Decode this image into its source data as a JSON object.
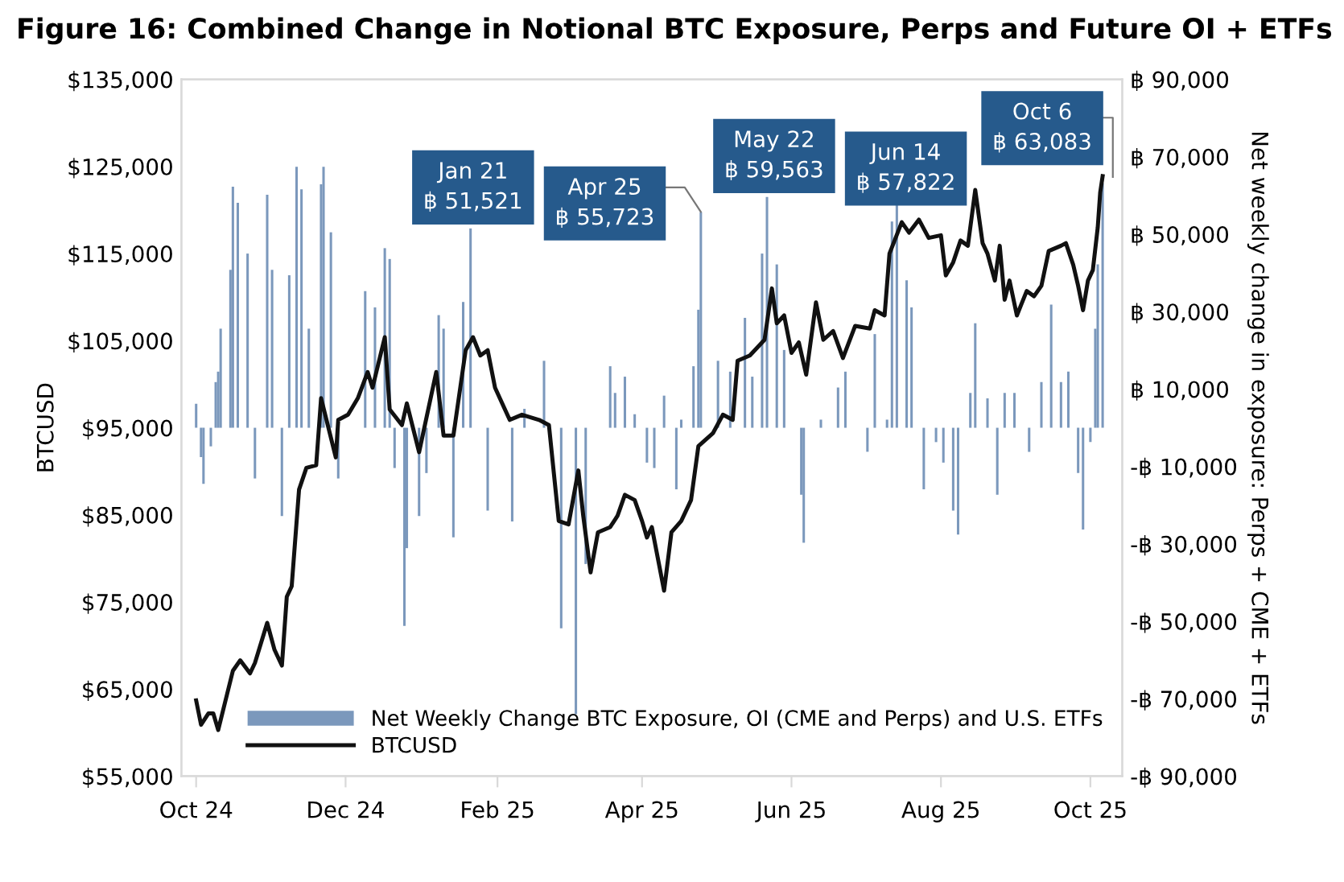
{
  "chart_data": {
    "type": "bar",
    "title": "Figure 16: Combined Change in Notional BTC Exposure, Perps and Future OI + ETFs",
    "ylabel": "BTCUSD",
    "y2label": "Net weekly change in exposure: Perps + CME + ETFs",
    "xlim": [
      "2024-09-25",
      "2025-10-14"
    ],
    "xticks": [
      {
        "value": "2024-10-01",
        "label": "Oct 24"
      },
      {
        "value": "2024-12-01",
        "label": "Dec 24"
      },
      {
        "value": "2025-02-01",
        "label": "Feb 25"
      },
      {
        "value": "2025-04-01",
        "label": "Apr 25"
      },
      {
        "value": "2025-06-01",
        "label": "Jun 25"
      },
      {
        "value": "2025-08-01",
        "label": "Aug 25"
      },
      {
        "value": "2025-10-01",
        "label": "Oct 25"
      }
    ],
    "ylim": [
      55000,
      135000
    ],
    "yticks": [
      {
        "value": 55000,
        "label": "$55,000"
      },
      {
        "value": 65000,
        "label": "$65,000"
      },
      {
        "value": 75000,
        "label": "$75,000"
      },
      {
        "value": 85000,
        "label": "$85,000"
      },
      {
        "value": 95000,
        "label": "$95,000"
      },
      {
        "value": 105000,
        "label": "$105,000"
      },
      {
        "value": 115000,
        "label": "$115,000"
      },
      {
        "value": 125000,
        "label": "$125,000"
      },
      {
        "value": 135000,
        "label": "$135,000"
      }
    ],
    "y2lim": [
      -90000,
      90000
    ],
    "y2ticks": [
      {
        "value": -90000,
        "label": "-฿ 90,000"
      },
      {
        "value": -70000,
        "label": "-฿ 70,000"
      },
      {
        "value": -50000,
        "label": "-฿ 50,000"
      },
      {
        "value": -30000,
        "label": "-฿ 30,000"
      },
      {
        "value": -10000,
        "label": "-฿ 10,000"
      },
      {
        "value": 10000,
        "label": "฿ 10,000"
      },
      {
        "value": 30000,
        "label": "฿ 30,000"
      },
      {
        "value": 50000,
        "label": "฿ 50,000"
      },
      {
        "value": 70000,
        "label": "฿ 70,000"
      },
      {
        "value": 90000,
        "label": "฿ 90,000"
      }
    ],
    "grid": false,
    "legend": "bottom left",
    "series": [
      {
        "name": "Net Weekly Change BTC Exposure, OI (CME and Perps) and U.S. ETFs",
        "axis": "y2",
        "color": "#7b98bc",
        "x": [
          "2024-10-01",
          "2024-10-03",
          "2024-10-04",
          "2024-10-07",
          "2024-10-09",
          "2024-10-10",
          "2024-10-11",
          "2024-10-15",
          "2024-10-16",
          "2024-10-18",
          "2024-10-22",
          "2024-10-25",
          "2024-10-30",
          "2024-11-01",
          "2024-11-05",
          "2024-11-08",
          "2024-11-11",
          "2024-11-13",
          "2024-11-16",
          "2024-11-21",
          "2024-11-22",
          "2024-11-25",
          "2024-11-28",
          "2024-12-09",
          "2024-12-13",
          "2024-12-17",
          "2024-12-19",
          "2024-12-21",
          "2024-12-25",
          "2024-12-26",
          "2024-12-31",
          "2025-01-03",
          "2025-01-08",
          "2025-01-10",
          "2025-01-14",
          "2025-01-18",
          "2025-01-21",
          "2025-01-28",
          "2025-02-07",
          "2025-02-12",
          "2025-02-20",
          "2025-02-27",
          "2025-03-05",
          "2025-03-09",
          "2025-03-19",
          "2025-03-21",
          "2025-03-25",
          "2025-03-29",
          "2025-04-03",
          "2025-04-06",
          "2025-04-10",
          "2025-04-15",
          "2025-04-17",
          "2025-04-22",
          "2025-04-24",
          "2025-04-25",
          "2025-05-02",
          "2025-05-07",
          "2025-05-10",
          "2025-05-13",
          "2025-05-16",
          "2025-05-20",
          "2025-05-22",
          "2025-05-26",
          "2025-05-29",
          "2025-06-05",
          "2025-06-06",
          "2025-06-13",
          "2025-06-20",
          "2025-06-23",
          "2025-07-02",
          "2025-07-05",
          "2025-07-10",
          "2025-07-12",
          "2025-07-14",
          "2025-07-18",
          "2025-07-20",
          "2025-07-25",
          "2025-07-30",
          "2025-08-02",
          "2025-08-06",
          "2025-08-08",
          "2025-08-13",
          "2025-08-15",
          "2025-08-20",
          "2025-08-24",
          "2025-08-27",
          "2025-08-31",
          "2025-09-06",
          "2025-09-11",
          "2025-09-15",
          "2025-09-19",
          "2025-09-22",
          "2025-09-26",
          "2025-09-28",
          "2025-10-01",
          "2025-10-03",
          "2025-10-04",
          "2025-10-06"
        ],
        "values": [
          6200,
          -7600,
          -14500,
          -4800,
          11800,
          14500,
          25600,
          40800,
          62300,
          58100,
          45000,
          -13100,
          60200,
          40800,
          -22800,
          39400,
          67400,
          61600,
          25600,
          62900,
          67400,
          50500,
          -13100,
          35300,
          31100,
          46400,
          43600,
          -10400,
          -51200,
          -31100,
          -22800,
          -11700,
          29100,
          25600,
          -28300,
          32500,
          51500,
          -21400,
          -24200,
          4900,
          17300,
          -51800,
          -74000,
          -35200,
          15900,
          9000,
          13200,
          3500,
          -9000,
          -10400,
          8300,
          -15900,
          2100,
          15900,
          30500,
          55700,
          17300,
          14500,
          null,
          28400,
          13200,
          45000,
          59600,
          42200,
          20100,
          -17300,
          -29700,
          2100,
          10400,
          14500,
          -6200,
          24200,
          2100,
          53300,
          57800,
          38100,
          31100,
          -15900,
          -3700,
          -9000,
          -21400,
          -27600,
          9000,
          27000,
          7600,
          -17300,
          9000,
          9000,
          -6200,
          11800,
          31800,
          11800,
          14500,
          -11700,
          -26300,
          -3700,
          25600,
          42200,
          63100
        ]
      },
      {
        "name": "BTCUSD",
        "type": "line",
        "color": "#111111",
        "line_style": "solid",
        "marker": "none",
        "x": [
          "2024-10-01",
          "2024-10-03",
          "2024-10-06",
          "2024-10-08",
          "2024-10-10",
          "2024-10-16",
          "2024-10-19",
          "2024-10-23",
          "2024-10-25",
          "2024-10-30",
          "2024-11-02",
          "2024-11-05",
          "2024-11-07",
          "2024-11-09",
          "2024-11-12",
          "2024-11-15",
          "2024-11-19",
          "2024-11-21",
          "2024-11-27",
          "2024-11-28",
          "2024-12-02",
          "2024-12-06",
          "2024-12-10",
          "2024-12-12",
          "2024-12-17",
          "2024-12-19",
          "2024-12-24",
          "2024-12-26",
          "2024-12-31",
          "2025-01-07",
          "2025-01-10",
          "2025-01-14",
          "2025-01-19",
          "2025-01-22",
          "2025-01-25",
          "2025-01-28",
          "2025-01-31",
          "2025-02-06",
          "2025-02-11",
          "2025-02-18",
          "2025-02-22",
          "2025-02-26",
          "2025-03-02",
          "2025-03-06",
          "2025-03-08",
          "2025-03-11",
          "2025-03-14",
          "2025-03-19",
          "2025-03-22",
          "2025-03-25",
          "2025-03-29",
          "2025-04-01",
          "2025-04-03",
          "2025-04-05",
          "2025-04-10",
          "2025-04-13",
          "2025-04-17",
          "2025-04-21",
          "2025-04-24",
          "2025-04-30",
          "2025-05-04",
          "2025-05-08",
          "2025-05-10",
          "2025-05-15",
          "2025-05-21",
          "2025-05-24",
          "2025-05-26",
          "2025-05-29",
          "2025-06-01",
          "2025-06-04",
          "2025-06-07",
          "2025-06-11",
          "2025-06-14",
          "2025-06-18",
          "2025-06-22",
          "2025-06-27",
          "2025-07-03",
          "2025-07-05",
          "2025-07-09",
          "2025-07-11",
          "2025-07-16",
          "2025-07-19",
          "2025-07-23",
          "2025-07-27",
          "2025-08-01",
          "2025-08-03",
          "2025-08-06",
          "2025-08-09",
          "2025-08-12",
          "2025-08-15",
          "2025-08-18",
          "2025-08-20",
          "2025-08-23",
          "2025-08-25",
          "2025-08-27",
          "2025-08-29",
          "2025-09-01",
          "2025-09-05",
          "2025-09-08",
          "2025-09-11",
          "2025-09-14",
          "2025-09-19",
          "2025-09-21",
          "2025-09-24",
          "2025-09-26",
          "2025-09-28",
          "2025-09-30",
          "2025-10-02",
          "2025-10-04",
          "2025-10-05",
          "2025-10-06"
        ],
        "values": [
          63700,
          60900,
          62200,
          62200,
          60300,
          67100,
          68300,
          66800,
          68000,
          72600,
          69500,
          67700,
          75600,
          76800,
          87900,
          90400,
          90700,
          98400,
          91600,
          95900,
          96500,
          98400,
          101400,
          99600,
          105400,
          97100,
          95300,
          97800,
          92200,
          101400,
          94100,
          94100,
          103900,
          105400,
          103300,
          103900,
          99600,
          95900,
          96500,
          95900,
          95300,
          84300,
          83900,
          90100,
          84900,
          78400,
          83000,
          83600,
          84900,
          87300,
          86700,
          84300,
          82400,
          83600,
          76300,
          83000,
          84300,
          86700,
          92900,
          94400,
          96500,
          95900,
          102700,
          103300,
          105100,
          111000,
          107000,
          107900,
          103600,
          104800,
          101100,
          109400,
          105100,
          106100,
          103000,
          106700,
          106400,
          108500,
          107900,
          115000,
          118600,
          117400,
          118900,
          116800,
          117100,
          112500,
          114000,
          116500,
          115900,
          122300,
          116200,
          115000,
          111900,
          115900,
          109700,
          111900,
          107900,
          110700,
          110100,
          111300,
          115300,
          115900,
          116200,
          113700,
          111300,
          108500,
          111900,
          113100,
          118000,
          122000,
          123900
        ]
      }
    ],
    "annotations": [
      "Jan 21\n฿ 51,521",
      "Apr 25\n฿ 55,723",
      "May 22\n฿ 59,563",
      "Jun 14\n฿ 57,822",
      "Oct 6\n฿ 63,083"
    ]
  }
}
